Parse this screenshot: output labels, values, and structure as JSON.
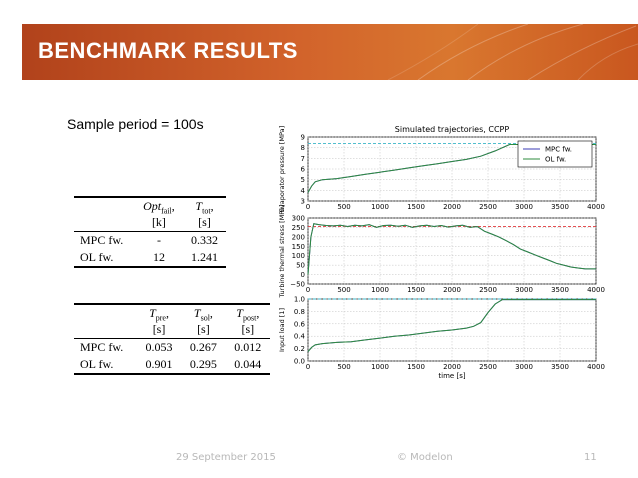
{
  "slide": {
    "title": "BENCHMARK RESULTS",
    "sample_period": "Sample period = 100s",
    "footer_date": "29 September 2015",
    "footer_copyright": "© Modelon",
    "footer_page": "11",
    "colors": {
      "banner": "#cf5f27",
      "mpc": "#3b3bb5",
      "ol": "#2e8b3e",
      "ref_cyan": "#39b5c8",
      "ref_red": "#e0373b"
    }
  },
  "table1": {
    "headers": [
      {
        "main": "Opt",
        "sub": "fail",
        "unit": "[k]"
      },
      {
        "main": "T",
        "sub": "tot",
        "unit": "[s]"
      }
    ],
    "rows": [
      {
        "label": "MPC fw.",
        "values": [
          "-",
          "0.332"
        ]
      },
      {
        "label": "OL fw.",
        "values": [
          "12",
          "1.241"
        ]
      }
    ]
  },
  "table2": {
    "headers": [
      {
        "main": "T",
        "sub": "pre",
        "unit": "[s]"
      },
      {
        "main": "T",
        "sub": "sol",
        "unit": "[s]"
      },
      {
        "main": "T",
        "sub": "post",
        "unit": "[s]"
      }
    ],
    "rows": [
      {
        "label": "MPC fw.",
        "values": [
          "0.053",
          "0.267",
          "0.012"
        ]
      },
      {
        "label": "OL fw.",
        "values": [
          "0.901",
          "0.295",
          "0.044"
        ]
      }
    ]
  },
  "chart_data": [
    {
      "type": "line",
      "title": "Simulated trajectories, CCPP",
      "ylabel": "Evaporator pressure [MPa]",
      "xlim": [
        0,
        4000
      ],
      "ylim": [
        3,
        9
      ],
      "xticks": [
        "0",
        "500",
        "1000",
        "1500",
        "2000",
        "2500",
        "3000",
        "3500",
        "4000"
      ],
      "yticks": [
        "3",
        "4",
        "5",
        "6",
        "7",
        "8",
        "9"
      ],
      "grid": true,
      "legend": "top-right",
      "reference": 8.4,
      "series": [
        {
          "name": "MPC fw.",
          "x": [
            0,
            50,
            100,
            200,
            400,
            600,
            800,
            1000,
            1200,
            1400,
            1600,
            1800,
            2000,
            2200,
            2400,
            2600,
            2700,
            2800,
            3000,
            3500,
            4000
          ],
          "values": [
            3.8,
            4.4,
            4.8,
            5.0,
            5.1,
            5.3,
            5.5,
            5.7,
            5.9,
            6.1,
            6.3,
            6.5,
            6.7,
            6.9,
            7.2,
            7.7,
            8.0,
            8.3,
            8.3,
            8.3,
            8.3
          ]
        },
        {
          "name": "OL fw.",
          "x": [
            0,
            50,
            100,
            200,
            400,
            600,
            800,
            1000,
            1200,
            1400,
            1600,
            1800,
            2000,
            2200,
            2400,
            2600,
            2700,
            2800,
            3000,
            3500,
            4000
          ],
          "values": [
            3.8,
            4.4,
            4.8,
            5.0,
            5.1,
            5.3,
            5.5,
            5.7,
            5.9,
            6.1,
            6.3,
            6.5,
            6.7,
            6.9,
            7.2,
            7.7,
            8.0,
            8.3,
            8.3,
            8.3,
            8.3
          ]
        }
      ]
    },
    {
      "type": "line",
      "ylabel": "Turbine thermal stress [MPa]",
      "xlim": [
        0,
        4000
      ],
      "ylim": [
        -50,
        300
      ],
      "xticks": [
        "0",
        "500",
        "1000",
        "1500",
        "2000",
        "2500",
        "3000",
        "3500",
        "4000"
      ],
      "yticks": [
        "−50",
        "0",
        "50",
        "100",
        "150",
        "200",
        "250",
        "300"
      ],
      "grid": true,
      "reference": 255,
      "series": [
        {
          "name": "MPC fw.",
          "x": [
            0,
            40,
            80,
            150,
            250,
            350,
            450,
            550,
            650,
            750,
            850,
            950,
            1050,
            1150,
            1250,
            1350,
            1450,
            1550,
            1650,
            1750,
            1850,
            1950,
            2050,
            2150,
            2250,
            2350,
            2450,
            2550,
            2650,
            2750,
            2850,
            2950,
            3050,
            3150,
            3250,
            3350,
            3450,
            3550,
            3650,
            3750,
            3850,
            4000
          ],
          "values": [
            0,
            200,
            270,
            265,
            260,
            258,
            262,
            255,
            262,
            258,
            265,
            250,
            260,
            262,
            256,
            262,
            250,
            258,
            262,
            255,
            260,
            252,
            258,
            262,
            250,
            255,
            230,
            215,
            200,
            180,
            160,
            135,
            120,
            105,
            90,
            75,
            60,
            50,
            40,
            35,
            30,
            30
          ]
        },
        {
          "name": "OL fw.",
          "x": [
            0,
            40,
            80,
            150,
            250,
            350,
            450,
            550,
            650,
            750,
            850,
            950,
            1050,
            1150,
            1250,
            1350,
            1450,
            1550,
            1650,
            1750,
            1850,
            1950,
            2050,
            2150,
            2250,
            2350,
            2450,
            2550,
            2650,
            2750,
            2850,
            2950,
            3050,
            3150,
            3250,
            3350,
            3450,
            3550,
            3650,
            3750,
            3850,
            4000
          ],
          "values": [
            0,
            200,
            270,
            265,
            260,
            258,
            262,
            255,
            262,
            258,
            265,
            250,
            260,
            262,
            256,
            262,
            250,
            258,
            262,
            255,
            260,
            252,
            258,
            262,
            250,
            255,
            230,
            215,
            200,
            180,
            160,
            135,
            120,
            105,
            90,
            75,
            60,
            50,
            40,
            35,
            30,
            30
          ]
        }
      ]
    },
    {
      "type": "line",
      "xlabel": "time [s]",
      "ylabel": "Input load [1]",
      "xlim": [
        0,
        4000
      ],
      "ylim": [
        0,
        1.0
      ],
      "xticks": [
        "0",
        "500",
        "1000",
        "1500",
        "2000",
        "2500",
        "3000",
        "3500",
        "4000"
      ],
      "yticks": [
        "0.0",
        "0.2",
        "0.4",
        "0.6",
        "0.8",
        "1.0"
      ],
      "grid": true,
      "reference": 1.0,
      "series": [
        {
          "name": "MPC fw.",
          "x": [
            0,
            50,
            100,
            200,
            400,
            600,
            800,
            1000,
            1200,
            1400,
            1600,
            1800,
            2000,
            2200,
            2300,
            2400,
            2500,
            2600,
            2700,
            2800,
            3000,
            3500,
            4000
          ],
          "values": [
            0.15,
            0.22,
            0.26,
            0.28,
            0.3,
            0.31,
            0.34,
            0.37,
            0.4,
            0.42,
            0.45,
            0.48,
            0.5,
            0.53,
            0.56,
            0.62,
            0.78,
            0.92,
            0.99,
            0.99,
            0.99,
            0.99,
            0.99
          ]
        },
        {
          "name": "OL fw.",
          "x": [
            0,
            50,
            100,
            200,
            400,
            600,
            800,
            1000,
            1200,
            1400,
            1600,
            1800,
            2000,
            2200,
            2300,
            2400,
            2500,
            2600,
            2700,
            2800,
            3000,
            3500,
            4000
          ],
          "values": [
            0.15,
            0.22,
            0.26,
            0.28,
            0.3,
            0.31,
            0.34,
            0.37,
            0.4,
            0.42,
            0.45,
            0.48,
            0.5,
            0.53,
            0.56,
            0.62,
            0.78,
            0.92,
            0.99,
            0.99,
            0.99,
            0.99,
            0.99
          ]
        }
      ]
    }
  ]
}
